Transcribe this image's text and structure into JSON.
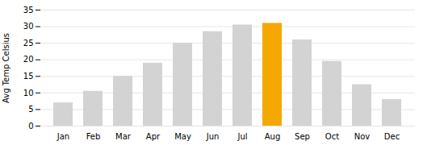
{
  "chart_data": {
    "type": "bar",
    "categories": [
      "Jan",
      "Feb",
      "Mar",
      "Apr",
      "May",
      "Jun",
      "Jul",
      "Aug",
      "Sep",
      "Oct",
      "Nov",
      "Dec"
    ],
    "values": [
      7,
      10.5,
      15,
      19,
      25,
      28.5,
      30.5,
      31,
      26,
      19.5,
      12.5,
      8
    ],
    "colors": [
      "#d3d3d3",
      "#d3d3d3",
      "#d3d3d3",
      "#d3d3d3",
      "#d3d3d3",
      "#d3d3d3",
      "#d3d3d3",
      "#f5a800",
      "#d3d3d3",
      "#d3d3d3",
      "#d3d3d3",
      "#d3d3d3"
    ],
    "ylabel": "Avg Temp Celsius",
    "ylim": [
      0,
      35
    ],
    "yticks": [
      0,
      5,
      10,
      15,
      20,
      25,
      30,
      35
    ],
    "grid": true
  }
}
